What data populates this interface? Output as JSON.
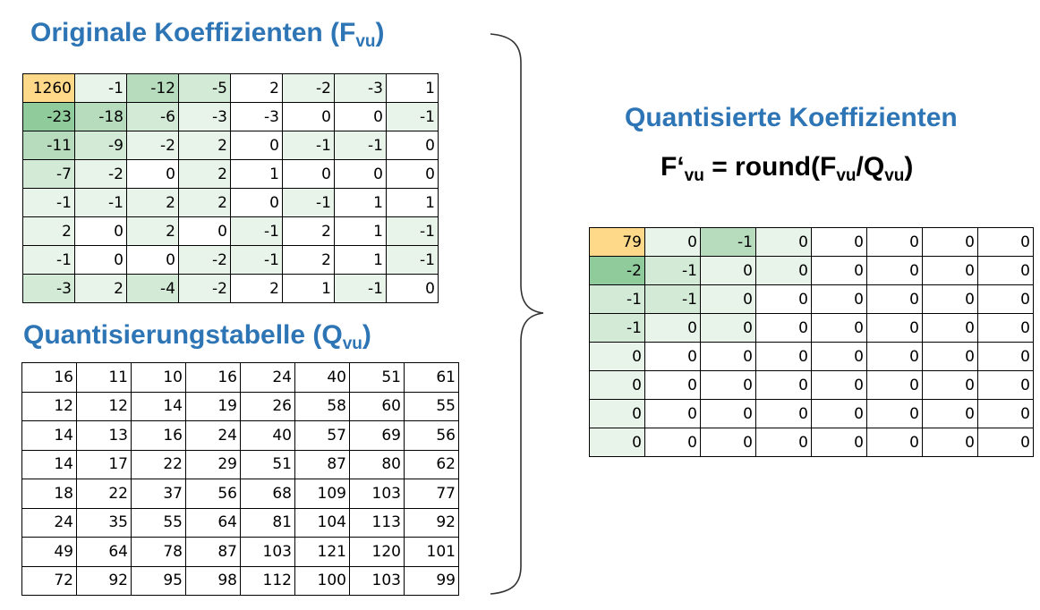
{
  "original": {
    "title": "Originale Koeffizienten (F",
    "title_sub": "vu",
    "title_end": ")",
    "rows": [
      [
        1260,
        -1,
        -12,
        -5,
        2,
        -2,
        -3,
        1
      ],
      [
        -23,
        -18,
        -6,
        -3,
        -3,
        0,
        0,
        -1
      ],
      [
        -11,
        -9,
        -2,
        2,
        0,
        -1,
        -1,
        0
      ],
      [
        -7,
        -2,
        0,
        2,
        1,
        0,
        0,
        0
      ],
      [
        -1,
        -1,
        2,
        2,
        0,
        -1,
        1,
        1
      ],
      [
        2,
        0,
        2,
        0,
        -1,
        2,
        1,
        -1
      ],
      [
        -1,
        0,
        0,
        -2,
        -1,
        2,
        1,
        -1
      ],
      [
        -3,
        2,
        -4,
        -2,
        2,
        1,
        -1,
        0
      ]
    ],
    "shading": [
      [
        5,
        1,
        3,
        2,
        0,
        1,
        1,
        0
      ],
      [
        4,
        3,
        2,
        1,
        0,
        0,
        0,
        1
      ],
      [
        3,
        2,
        1,
        1,
        0,
        1,
        1,
        0
      ],
      [
        2,
        1,
        0,
        1,
        0,
        0,
        0,
        0
      ],
      [
        1,
        1,
        1,
        1,
        0,
        1,
        0,
        0
      ],
      [
        1,
        0,
        1,
        0,
        1,
        0,
        0,
        1
      ],
      [
        1,
        0,
        0,
        1,
        1,
        0,
        0,
        1
      ],
      [
        2,
        1,
        2,
        1,
        0,
        0,
        1,
        0
      ]
    ]
  },
  "quantization": {
    "title": "Quantisierungstabelle (Q",
    "title_sub": "vu",
    "title_end": ")",
    "rows": [
      [
        16,
        11,
        10,
        16,
        24,
        40,
        51,
        61
      ],
      [
        12,
        12,
        14,
        19,
        26,
        58,
        60,
        55
      ],
      [
        14,
        13,
        16,
        24,
        40,
        57,
        69,
        56
      ],
      [
        14,
        17,
        22,
        29,
        51,
        87,
        80,
        62
      ],
      [
        18,
        22,
        37,
        56,
        68,
        109,
        103,
        77
      ],
      [
        24,
        35,
        55,
        64,
        81,
        104,
        113,
        92
      ],
      [
        49,
        64,
        78,
        87,
        103,
        121,
        120,
        101
      ],
      [
        72,
        92,
        95,
        98,
        112,
        100,
        103,
        99
      ]
    ]
  },
  "result": {
    "title": "Quantisierte Koeffizienten",
    "formula_a": "F‘",
    "formula_a_sub": "vu",
    "formula_b": " = round(F",
    "formula_b_sub": "vu",
    "formula_c": "/Q",
    "formula_c_sub": "vu",
    "formula_d": ")",
    "rows": [
      [
        79,
        0,
        -1,
        0,
        0,
        0,
        0,
        0
      ],
      [
        -2,
        -1,
        0,
        0,
        0,
        0,
        0,
        0
      ],
      [
        -1,
        -1,
        0,
        0,
        0,
        0,
        0,
        0
      ],
      [
        -1,
        0,
        0,
        0,
        0,
        0,
        0,
        0
      ],
      [
        0,
        0,
        0,
        0,
        0,
        0,
        0,
        0
      ],
      [
        0,
        0,
        0,
        0,
        0,
        0,
        0,
        0
      ],
      [
        0,
        0,
        0,
        0,
        0,
        0,
        0,
        0
      ],
      [
        0,
        0,
        0,
        0,
        0,
        0,
        0,
        0
      ]
    ],
    "shading": [
      [
        5,
        1,
        3,
        1,
        0,
        0,
        0,
        0
      ],
      [
        4,
        2,
        1,
        1,
        0,
        0,
        0,
        0
      ],
      [
        2,
        2,
        1,
        0,
        0,
        0,
        0,
        0
      ],
      [
        2,
        1,
        1,
        0,
        0,
        0,
        0,
        0
      ],
      [
        1,
        0,
        0,
        0,
        0,
        0,
        0,
        0
      ],
      [
        1,
        0,
        0,
        0,
        0,
        0,
        0,
        0
      ],
      [
        1,
        0,
        0,
        0,
        0,
        0,
        0,
        0
      ],
      [
        1,
        0,
        0,
        0,
        0,
        0,
        0,
        0
      ]
    ]
  },
  "colors": {
    "title": "#2e75b6",
    "dc_cell": "#ffd98a",
    "shade_levels": [
      "#ffffff",
      "#e8f4ea",
      "#d2ead6",
      "#b6dcbd",
      "#8fcb9b",
      "#5cb36d"
    ]
  }
}
